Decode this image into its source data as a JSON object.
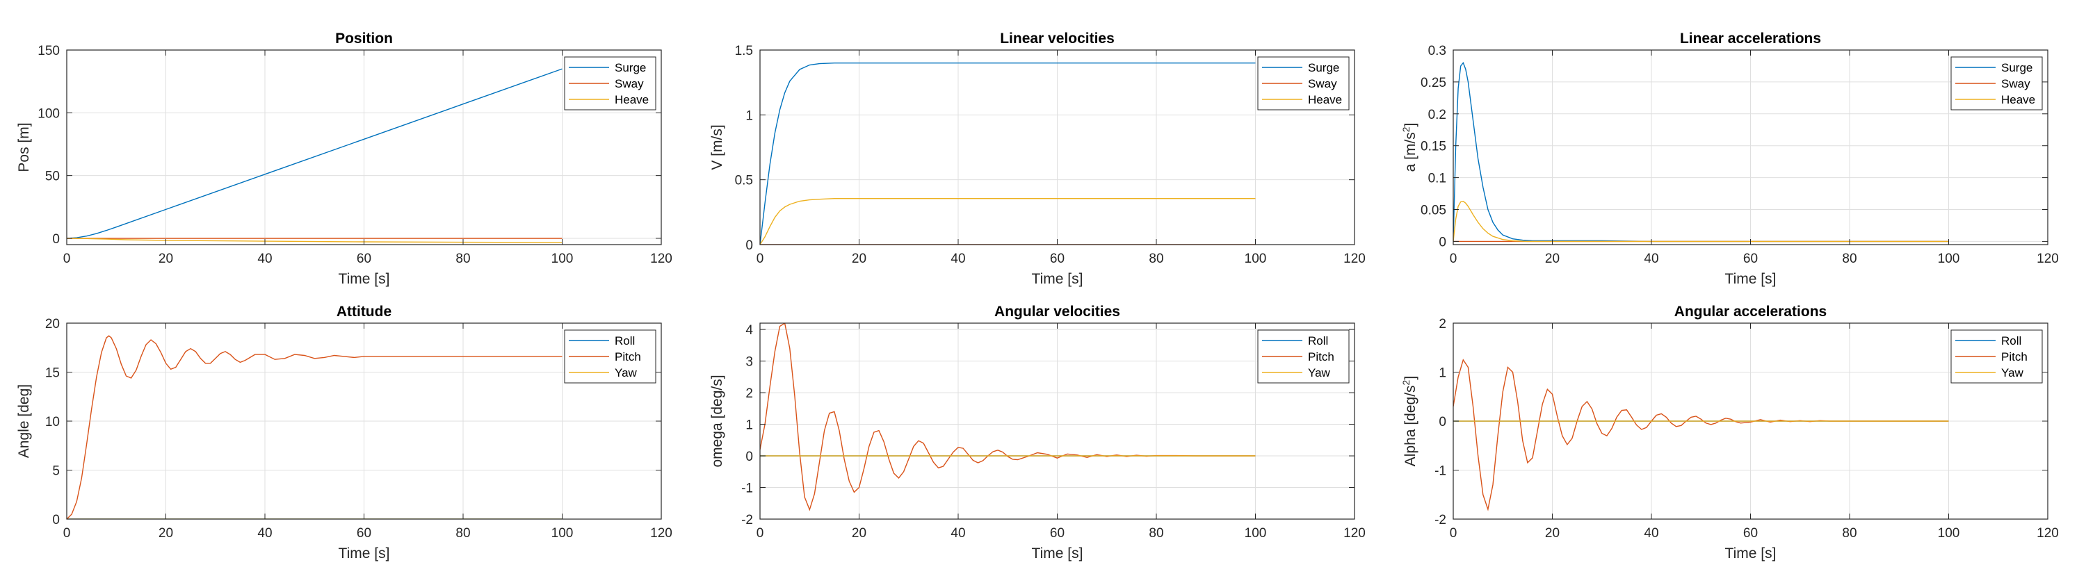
{
  "colors": {
    "series1": "#0072BD",
    "series2": "#D95319",
    "series3": "#EDB120",
    "grid": "#dfdfdf",
    "axis": "#262626"
  },
  "chart_data": [
    {
      "type": "line",
      "title": "Position",
      "xlabel": "Time [s]",
      "ylabel": "Pos [m]",
      "ylabel_sup": "",
      "xlim": [
        0,
        120
      ],
      "ylim": [
        -5,
        150
      ],
      "xticks": [
        "0",
        "20",
        "40",
        "60",
        "80",
        "100",
        "120"
      ],
      "yticks": [
        "0",
        "50",
        "100",
        "150"
      ],
      "ytick_values": [
        0,
        50,
        100,
        150
      ],
      "grid": true,
      "legend": "top-right",
      "series": [
        {
          "name": "Surge",
          "color": "#0072BD",
          "x": [
            0,
            2,
            4,
            6,
            8,
            10,
            20,
            40,
            60,
            80,
            100
          ],
          "y": [
            0,
            0.5,
            1.8,
            3.8,
            6.3,
            9,
            23,
            51,
            79,
            107,
            135
          ]
        },
        {
          "name": "Sway",
          "color": "#D95319",
          "x": [
            0,
            100
          ],
          "y": [
            0,
            0
          ]
        },
        {
          "name": "Heave",
          "color": "#EDB120",
          "x": [
            0,
            4,
            8,
            12,
            20,
            40,
            60,
            80,
            100
          ],
          "y": [
            0,
            -0.2,
            -0.6,
            -1.1,
            -1.6,
            -2.3,
            -2.8,
            -3.1,
            -3.3
          ]
        }
      ]
    },
    {
      "type": "line",
      "title": "Linear velocities",
      "xlabel": "Time [s]",
      "ylabel": "V [m/s]",
      "ylabel_sup": "",
      "xlim": [
        0,
        120
      ],
      "ylim": [
        0,
        1.5
      ],
      "xticks": [
        "0",
        "20",
        "40",
        "60",
        "80",
        "100",
        "120"
      ],
      "yticks": [
        "0",
        "0.5",
        "1",
        "1.5"
      ],
      "ytick_values": [
        0,
        0.5,
        1,
        1.5
      ],
      "grid": true,
      "legend": "top-right",
      "series": [
        {
          "name": "Surge",
          "color": "#0072BD",
          "x": [
            0,
            1,
            2,
            3,
            4,
            5,
            6,
            8,
            10,
            12,
            15,
            20,
            30,
            40,
            60,
            80,
            100
          ],
          "y": [
            0,
            0.32,
            0.62,
            0.86,
            1.04,
            1.17,
            1.26,
            1.35,
            1.385,
            1.395,
            1.4,
            1.4,
            1.4,
            1.4,
            1.4,
            1.4,
            1.4
          ]
        },
        {
          "name": "Sway",
          "color": "#D95319",
          "x": [
            0,
            100
          ],
          "y": [
            0,
            0
          ]
        },
        {
          "name": "Heave",
          "color": "#EDB120",
          "x": [
            0,
            1,
            2,
            3,
            4,
            5,
            6,
            8,
            10,
            12,
            15,
            20,
            40,
            60,
            80,
            100
          ],
          "y": [
            0,
            0.06,
            0.14,
            0.21,
            0.26,
            0.29,
            0.31,
            0.335,
            0.345,
            0.35,
            0.355,
            0.355,
            0.355,
            0.355,
            0.355,
            0.355
          ]
        }
      ]
    },
    {
      "type": "line",
      "title": "Linear accelerations",
      "xlabel": "Time [s]",
      "ylabel": "a [m/s",
      "ylabel_sup": "2",
      "ylabel_suffix": "]",
      "xlim": [
        0,
        120
      ],
      "ylim": [
        -0.005,
        0.3
      ],
      "xticks": [
        "0",
        "20",
        "40",
        "60",
        "80",
        "100",
        "120"
      ],
      "yticks": [
        "0",
        "0.05",
        "0.1",
        "0.15",
        "0.2",
        "0.25",
        "0.3"
      ],
      "ytick_values": [
        0,
        0.05,
        0.1,
        0.15,
        0.2,
        0.25,
        0.3
      ],
      "grid": true,
      "legend": "top-right",
      "series": [
        {
          "name": "Surge",
          "color": "#0072BD",
          "x": [
            0,
            0.5,
            1,
            1.5,
            2,
            2.5,
            3,
            4,
            5,
            6,
            7,
            8,
            9,
            10,
            12,
            14,
            16,
            20,
            30,
            40,
            60,
            80,
            100
          ],
          "y": [
            0,
            0.15,
            0.24,
            0.275,
            0.28,
            0.27,
            0.25,
            0.19,
            0.13,
            0.085,
            0.05,
            0.03,
            0.018,
            0.01,
            0.004,
            0.002,
            0.001,
            0.001,
            0.001,
            0,
            0,
            0,
            0
          ]
        },
        {
          "name": "Sway",
          "color": "#D95319",
          "x": [
            0,
            100
          ],
          "y": [
            0,
            0
          ]
        },
        {
          "name": "Heave",
          "color": "#EDB120",
          "x": [
            0,
            0.5,
            1,
            1.5,
            2,
            2.5,
            3,
            4,
            5,
            6,
            7,
            8,
            10,
            12,
            15,
            20,
            40,
            60,
            80,
            100
          ],
          "y": [
            0,
            0.035,
            0.055,
            0.062,
            0.063,
            0.06,
            0.055,
            0.042,
            0.03,
            0.02,
            0.013,
            0.008,
            0.003,
            0.001,
            0,
            0,
            0,
            0,
            0,
            0
          ]
        }
      ]
    },
    {
      "type": "line",
      "title": "Attitude",
      "xlabel": "Time [s]",
      "ylabel": "Angle [deg]",
      "ylabel_sup": "",
      "xlim": [
        0,
        120
      ],
      "ylim": [
        0,
        20
      ],
      "xticks": [
        "0",
        "20",
        "40",
        "60",
        "80",
        "100",
        "120"
      ],
      "yticks": [
        "0",
        "5",
        "10",
        "15",
        "20"
      ],
      "ytick_values": [
        0,
        5,
        10,
        15,
        20
      ],
      "grid": true,
      "legend": "top-right",
      "series": [
        {
          "name": "Roll",
          "color": "#0072BD",
          "x": [
            0,
            100
          ],
          "y": [
            0,
            0
          ]
        },
        {
          "name": "Pitch",
          "color": "#D95319",
          "x": [
            0,
            1,
            2,
            3,
            4,
            5,
            6,
            7,
            8,
            8.5,
            9,
            10,
            11,
            12,
            13,
            14,
            15,
            16,
            17,
            18,
            19,
            20,
            21,
            22,
            23,
            24,
            25,
            26,
            27,
            28,
            29,
            30,
            31,
            32,
            33,
            34,
            35,
            36,
            38,
            40,
            42,
            44,
            46,
            48,
            50,
            52,
            54,
            56,
            58,
            60,
            65,
            70,
            75,
            80,
            85,
            90,
            95,
            100
          ],
          "y": [
            0,
            0.5,
            1.8,
            4.2,
            7.6,
            11.2,
            14.5,
            17.0,
            18.5,
            18.7,
            18.5,
            17.4,
            15.8,
            14.6,
            14.4,
            15.2,
            16.6,
            17.8,
            18.3,
            17.9,
            17.0,
            15.9,
            15.3,
            15.5,
            16.3,
            17.1,
            17.4,
            17.1,
            16.4,
            15.9,
            15.9,
            16.4,
            16.9,
            17.1,
            16.8,
            16.3,
            16.0,
            16.2,
            16.8,
            16.8,
            16.3,
            16.4,
            16.8,
            16.7,
            16.4,
            16.5,
            16.7,
            16.6,
            16.5,
            16.6,
            16.6,
            16.6,
            16.6,
            16.6,
            16.6,
            16.6,
            16.6,
            16.6
          ]
        },
        {
          "name": "Yaw",
          "color": "#EDB120",
          "x": [
            0,
            100
          ],
          "y": [
            0,
            0
          ]
        }
      ]
    },
    {
      "type": "line",
      "title": "Angular velocities",
      "xlabel": "Time [s]",
      "ylabel": "omega [deg/s]",
      "ylabel_sup": "",
      "xlim": [
        0,
        120
      ],
      "ylim": [
        -2,
        4.2
      ],
      "xticks": [
        "0",
        "20",
        "40",
        "60",
        "80",
        "100",
        "120"
      ],
      "yticks": [
        "-2",
        "-1",
        "0",
        "1",
        "2",
        "3",
        "4"
      ],
      "ytick_values": [
        -2,
        -1,
        0,
        1,
        2,
        3,
        4
      ],
      "grid": true,
      "legend": "top-right",
      "series": [
        {
          "name": "Roll",
          "color": "#0072BD",
          "x": [
            0,
            100
          ],
          "y": [
            0,
            0
          ]
        },
        {
          "name": "Pitch",
          "color": "#D95319",
          "x": [
            0,
            1,
            2,
            3,
            4,
            5,
            6,
            7,
            8,
            9,
            10,
            11,
            12,
            13,
            14,
            15,
            16,
            17,
            18,
            19,
            20,
            21,
            22,
            23,
            24,
            25,
            26,
            27,
            28,
            29,
            30,
            31,
            32,
            33,
            34,
            35,
            36,
            37,
            38,
            39,
            40,
            41,
            42,
            43,
            44,
            45,
            46,
            47,
            48,
            49,
            50,
            51,
            52,
            54,
            56,
            58,
            60,
            62,
            64,
            66,
            68,
            70,
            72,
            74,
            76,
            78,
            80,
            84,
            88,
            92,
            96,
            100
          ],
          "y": [
            0.2,
            1.0,
            2.2,
            3.3,
            4.1,
            4.2,
            3.4,
            1.9,
            0.1,
            -1.3,
            -1.7,
            -1.2,
            -0.2,
            0.8,
            1.35,
            1.4,
            0.8,
            -0.1,
            -0.8,
            -1.15,
            -1.0,
            -0.4,
            0.3,
            0.75,
            0.8,
            0.45,
            -0.1,
            -0.55,
            -0.7,
            -0.5,
            -0.1,
            0.3,
            0.48,
            0.4,
            0.1,
            -0.2,
            -0.38,
            -0.33,
            -0.1,
            0.12,
            0.27,
            0.24,
            0.05,
            -0.14,
            -0.22,
            -0.15,
            0.0,
            0.13,
            0.18,
            0.12,
            -0.02,
            -0.11,
            -0.12,
            -0.02,
            0.1,
            0.05,
            -0.07,
            0.06,
            0.03,
            -0.05,
            0.04,
            -0.02,
            0.03,
            -0.02,
            0.02,
            -0.01,
            0.01,
            0.01,
            0,
            0,
            0,
            0
          ]
        },
        {
          "name": "Yaw",
          "color": "#EDB120",
          "x": [
            0,
            100
          ],
          "y": [
            0,
            0
          ]
        }
      ]
    },
    {
      "type": "line",
      "title": "Angular accelerations",
      "xlabel": "Time [s]",
      "ylabel": "Alpha [deg/s",
      "ylabel_sup": "2",
      "ylabel_suffix": "]",
      "xlim": [
        0,
        120
      ],
      "ylim": [
        -2,
        2
      ],
      "xticks": [
        "0",
        "20",
        "40",
        "60",
        "80",
        "100",
        "120"
      ],
      "yticks": [
        "-2",
        "-1",
        "0",
        "1",
        "2"
      ],
      "ytick_values": [
        -2,
        -1,
        0,
        1,
        2
      ],
      "grid": true,
      "legend": "top-right",
      "series": [
        {
          "name": "Roll",
          "color": "#0072BD",
          "x": [
            0,
            100
          ],
          "y": [
            0,
            0
          ]
        },
        {
          "name": "Pitch",
          "color": "#D95319",
          "x": [
            0,
            1,
            2,
            3,
            4,
            5,
            6,
            7,
            8,
            9,
            10,
            11,
            12,
            13,
            14,
            15,
            16,
            17,
            18,
            19,
            20,
            21,
            22,
            23,
            24,
            25,
            26,
            27,
            28,
            29,
            30,
            31,
            32,
            33,
            34,
            35,
            36,
            37,
            38,
            39,
            40,
            41,
            42,
            43,
            44,
            45,
            46,
            47,
            48,
            49,
            50,
            51,
            52,
            53,
            54,
            55,
            56,
            57,
            58,
            60,
            62,
            64,
            66,
            68,
            70,
            72,
            74,
            76,
            78,
            80,
            84,
            88,
            92,
            96,
            100
          ],
          "y": [
            0.3,
            0.9,
            1.25,
            1.1,
            0.3,
            -0.7,
            -1.5,
            -1.8,
            -1.3,
            -0.3,
            0.6,
            1.1,
            1.0,
            0.4,
            -0.4,
            -0.85,
            -0.75,
            -0.2,
            0.35,
            0.65,
            0.55,
            0.1,
            -0.3,
            -0.48,
            -0.35,
            0.0,
            0.3,
            0.4,
            0.25,
            -0.05,
            -0.25,
            -0.3,
            -0.15,
            0.08,
            0.22,
            0.23,
            0.08,
            -0.08,
            -0.17,
            -0.13,
            0.0,
            0.12,
            0.15,
            0.08,
            -0.04,
            -0.11,
            -0.09,
            0.0,
            0.08,
            0.1,
            0.04,
            -0.04,
            -0.07,
            -0.04,
            0.02,
            0.06,
            0.04,
            -0.01,
            -0.04,
            -0.02,
            0.03,
            -0.02,
            0.02,
            -0.01,
            0.01,
            -0.01,
            0.01,
            0,
            0,
            0,
            0,
            0,
            0,
            0,
            0
          ]
        },
        {
          "name": "Yaw",
          "color": "#EDB120",
          "x": [
            0,
            100
          ],
          "y": [
            0,
            0
          ]
        }
      ]
    }
  ]
}
